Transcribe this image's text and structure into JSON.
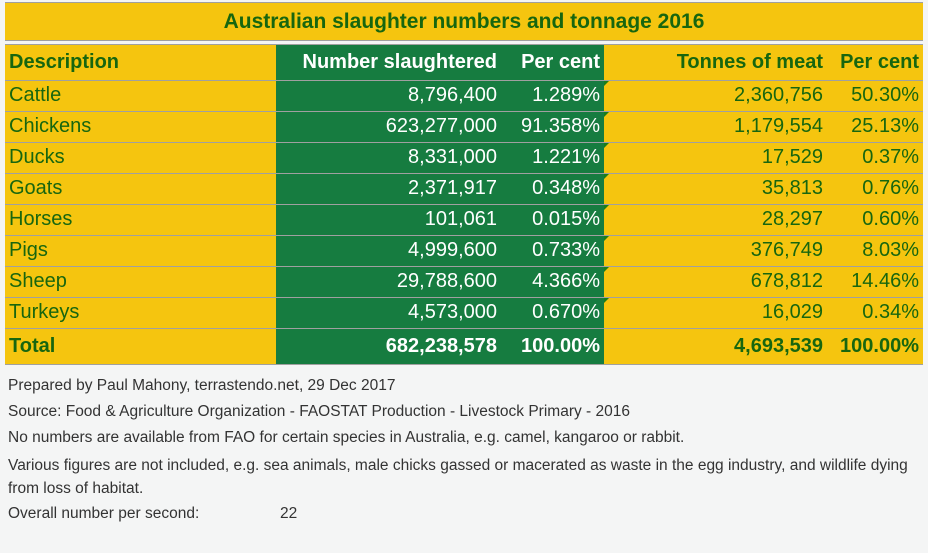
{
  "title": "Australian slaughter numbers and tonnage 2016",
  "colors": {
    "yellow": "#f5c50f",
    "green": "#167c40",
    "dark_text": "#17660f"
  },
  "table": {
    "headers": {
      "description": "Description",
      "number": "Number slaughtered",
      "number_pct": "Per cent",
      "tonnes": "Tonnes of meat",
      "tonnes_pct": "Per cent"
    },
    "rows": [
      {
        "description": "Cattle",
        "number": "8,796,400",
        "number_pct": "1.289%",
        "tonnes": "2,360,756",
        "tonnes_pct": "50.30%"
      },
      {
        "description": "Chickens",
        "number": "623,277,000",
        "number_pct": "91.358%",
        "tonnes": "1,179,554",
        "tonnes_pct": "25.13%"
      },
      {
        "description": "Ducks",
        "number": "8,331,000",
        "number_pct": "1.221%",
        "tonnes": "17,529",
        "tonnes_pct": "0.37%"
      },
      {
        "description": "Goats",
        "number": "2,371,917",
        "number_pct": "0.348%",
        "tonnes": "35,813",
        "tonnes_pct": "0.76%"
      },
      {
        "description": "Horses",
        "number": "101,061",
        "number_pct": "0.015%",
        "tonnes": "28,297",
        "tonnes_pct": "0.60%"
      },
      {
        "description": "Pigs",
        "number": "4,999,600",
        "number_pct": "0.733%",
        "tonnes": "376,749",
        "tonnes_pct": "8.03%"
      },
      {
        "description": "Sheep",
        "number": "29,788,600",
        "number_pct": "4.366%",
        "tonnes": "678,812",
        "tonnes_pct": "14.46%"
      },
      {
        "description": "Turkeys",
        "number": "4,573,000",
        "number_pct": "0.670%",
        "tonnes": "16,029",
        "tonnes_pct": "0.34%"
      }
    ],
    "total": {
      "description": "Total",
      "number": "682,238,578",
      "number_pct": "100.00%",
      "tonnes": "4,693,539",
      "tonnes_pct": "100.00%"
    }
  },
  "notes": {
    "prepared": "Prepared by Paul Mahony, terrastendo.net, 29 Dec 2017",
    "source": "Source: Food & Agriculture Organization - FAOSTAT Production - Livestock Primary - 2016",
    "availability": "No numbers are available from FAO for certain species in Australia, e.g. camel, kangaroo or rabbit.",
    "excluded": "Various figures are not included, e.g. sea animals, male chicks gassed or macerated as waste in the egg industry, and wildlife dying from loss of habitat.",
    "overall_label": "Overall number per second:",
    "overall_value": "22"
  }
}
